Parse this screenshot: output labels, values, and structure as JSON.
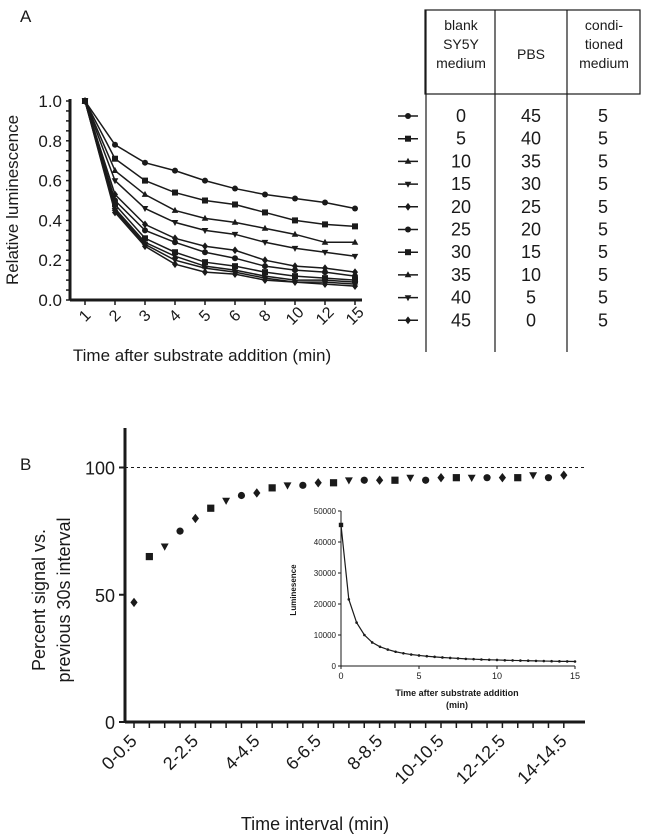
{
  "panel_labels": {
    "a": "A",
    "b": "B"
  },
  "chart_data": [
    {
      "id": "A",
      "type": "line",
      "title": "",
      "xlabel": "Time after substrate addition (min)",
      "ylabel": "Relative luminescence",
      "categories": [
        "1",
        "2",
        "3",
        "4",
        "5",
        "6",
        "8",
        "10",
        "12",
        "15"
      ],
      "ylim": [
        0.0,
        1.0
      ],
      "yticks": [
        "0.0",
        "0.2",
        "0.4",
        "0.6",
        "0.8",
        "1.0"
      ],
      "series": [
        {
          "name": "0",
          "marker": "circle",
          "values": [
            1.0,
            0.78,
            0.69,
            0.65,
            0.6,
            0.56,
            0.53,
            0.51,
            0.49,
            0.46
          ]
        },
        {
          "name": "5",
          "marker": "square",
          "values": [
            1.0,
            0.71,
            0.6,
            0.54,
            0.5,
            0.48,
            0.44,
            0.4,
            0.38,
            0.37
          ]
        },
        {
          "name": "10",
          "marker": "triangle",
          "values": [
            1.0,
            0.65,
            0.53,
            0.45,
            0.41,
            0.39,
            0.36,
            0.33,
            0.29,
            0.29
          ]
        },
        {
          "name": "15",
          "marker": "tri-down",
          "values": [
            1.0,
            0.6,
            0.46,
            0.39,
            0.35,
            0.33,
            0.29,
            0.26,
            0.24,
            0.22
          ]
        },
        {
          "name": "20",
          "marker": "diamond",
          "values": [
            1.0,
            0.53,
            0.38,
            0.31,
            0.27,
            0.25,
            0.2,
            0.17,
            0.16,
            0.14
          ]
        },
        {
          "name": "25",
          "marker": "circle",
          "values": [
            1.0,
            0.5,
            0.35,
            0.29,
            0.24,
            0.21,
            0.17,
            0.15,
            0.14,
            0.12
          ]
        },
        {
          "name": "30",
          "marker": "square",
          "values": [
            1.0,
            0.48,
            0.31,
            0.24,
            0.19,
            0.17,
            0.14,
            0.12,
            0.11,
            0.1
          ]
        },
        {
          "name": "35",
          "marker": "triangle",
          "values": [
            1.0,
            0.46,
            0.29,
            0.22,
            0.17,
            0.15,
            0.12,
            0.1,
            0.1,
            0.09
          ]
        },
        {
          "name": "40",
          "marker": "tri-down",
          "values": [
            1.0,
            0.45,
            0.28,
            0.2,
            0.16,
            0.14,
            0.11,
            0.09,
            0.09,
            0.08
          ]
        },
        {
          "name": "45",
          "marker": "diamond",
          "values": [
            1.0,
            0.44,
            0.27,
            0.18,
            0.14,
            0.13,
            0.1,
            0.09,
            0.08,
            0.07
          ]
        }
      ],
      "legend_table": {
        "headers": [
          "blank SY5Y medium",
          "PBS",
          "condi-tioned medium"
        ],
        "header_lines": [
          [
            "blank",
            "SY5Y",
            "medium"
          ],
          [
            "PBS"
          ],
          [
            "condi-",
            "tioned",
            "medium"
          ]
        ],
        "rows": [
          [
            "0",
            "45",
            "5"
          ],
          [
            "5",
            "40",
            "5"
          ],
          [
            "10",
            "35",
            "5"
          ],
          [
            "15",
            "30",
            "5"
          ],
          [
            "20",
            "25",
            "5"
          ],
          [
            "25",
            "20",
            "5"
          ],
          [
            "30",
            "15",
            "5"
          ],
          [
            "35",
            "10",
            "5"
          ],
          [
            "40",
            "5",
            "5"
          ],
          [
            "45",
            "0",
            "5"
          ]
        ]
      }
    },
    {
      "id": "B",
      "type": "scatter",
      "title": "",
      "xlabel": "Time interval (min)",
      "ylabel": "Percent signal vs. previous 30s interval",
      "ylabel_lines": [
        "Percent signal vs.",
        "previous 30s interval"
      ],
      "ylim": [
        0,
        115
      ],
      "yticks": [
        "0",
        "50",
        "100"
      ],
      "reference_line": 100,
      "xticklabels": [
        "0-0.5",
        "2-2.5",
        "4-4.5",
        "6-6.5",
        "8-8.5",
        "10-10.5",
        "12-12.5",
        "14-14.5"
      ],
      "x": [
        0,
        0.5,
        1,
        1.5,
        2,
        2.5,
        3,
        3.5,
        4,
        4.5,
        5,
        5.5,
        6,
        6.5,
        7,
        7.5,
        8,
        8.5,
        9,
        9.5,
        10,
        10.5,
        11,
        11.5,
        12,
        12.5,
        13,
        13.5,
        14
      ],
      "values": [
        47,
        65,
        69,
        75,
        80,
        84,
        87,
        89,
        90,
        92,
        93,
        93,
        94,
        94,
        95,
        95,
        95,
        95,
        96,
        95,
        96,
        96,
        96,
        96,
        96,
        96,
        97,
        96,
        97
      ],
      "inset": {
        "type": "line",
        "xlabel": "Time after substrate addition (min)",
        "xlabel_lines": [
          "Time after substrate addition",
          "(min)"
        ],
        "ylabel": "Luminesence",
        "xlim": [
          0,
          15
        ],
        "ylim": [
          0,
          50000
        ],
        "xticks": [
          "0",
          "5",
          "10",
          "15"
        ],
        "yticks": [
          "0",
          "10000",
          "20000",
          "30000",
          "40000",
          "50000"
        ],
        "x": [
          0,
          0.5,
          1,
          1.5,
          2,
          2.5,
          3,
          3.5,
          4,
          4.5,
          5,
          5.5,
          6,
          6.5,
          7,
          7.5,
          8,
          8.5,
          9,
          9.5,
          10,
          10.5,
          11,
          11.5,
          12,
          12.5,
          13,
          13.5,
          14,
          14.5,
          15
        ],
        "values": [
          45500,
          21500,
          14000,
          10000,
          7600,
          6200,
          5300,
          4600,
          4100,
          3700,
          3400,
          3150,
          2950,
          2750,
          2600,
          2450,
          2300,
          2200,
          2100,
          2000,
          1950,
          1850,
          1800,
          1750,
          1700,
          1650,
          1600,
          1550,
          1500,
          1480,
          1450
        ]
      }
    }
  ]
}
